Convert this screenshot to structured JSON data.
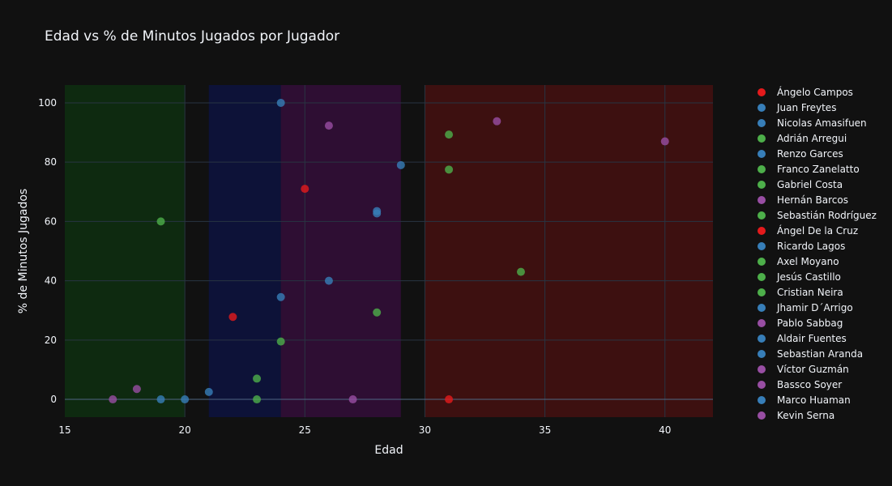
{
  "chart_data": {
    "type": "scatter",
    "title": "Edad vs % de Minutos Jugados por Jugador",
    "xlabel": "Edad",
    "ylabel": "% de Minutos Jugados",
    "xlim": [
      15,
      42
    ],
    "ylim": [
      -6,
      106
    ],
    "xticks": [
      15,
      20,
      25,
      30,
      35,
      40
    ],
    "yticks": [
      0,
      20,
      40,
      60,
      80,
      100
    ],
    "grid": true,
    "legend_position": "right",
    "background": "#111111",
    "regions": [
      {
        "x0": 15,
        "x1": 20,
        "color": "#0e2a10"
      },
      {
        "x0": 21,
        "x1": 24,
        "color": "#0d1238"
      },
      {
        "x0": 24,
        "x1": 29,
        "color": "#2e0e33"
      },
      {
        "x0": 30,
        "x1": 42,
        "color": "#3d1010"
      }
    ],
    "series": [
      {
        "name": "Ángelo Campos",
        "color": "#e41a1c",
        "x": [
          31
        ],
        "y": [
          0
        ]
      },
      {
        "name": "Juan Freytes",
        "color": "#377eb8",
        "x": [
          29
        ],
        "y": [
          79
        ]
      },
      {
        "name": "Nicolas Amasifuen",
        "color": "#377eb8",
        "x": [
          20
        ],
        "y": [
          0
        ]
      },
      {
        "name": "Adrián Arregui",
        "color": "#4daf4a",
        "x": [
          31
        ],
        "y": [
          77.5
        ]
      },
      {
        "name": "Renzo Garces",
        "color": "#377eb8",
        "x": [
          28
        ],
        "y": [
          63.5
        ]
      },
      {
        "name": "Franco Zanelatto",
        "color": "#4daf4a",
        "x": [
          24
        ],
        "y": [
          19.5
        ]
      },
      {
        "name": "Gabriel Costa",
        "color": "#4daf4a",
        "x": [
          31
        ],
        "y": [
          89.3
        ]
      },
      {
        "name": "Hernán Barcos",
        "color": "#984ea3",
        "x": [
          40
        ],
        "y": [
          87
        ]
      },
      {
        "name": "Sebastián Rodríguez",
        "color": "#4daf4a",
        "x": [
          34
        ],
        "y": [
          43
        ]
      },
      {
        "name": "Ángel De la Cruz",
        "color": "#e41a1c",
        "x": [
          22
        ],
        "y": [
          27.8
        ]
      },
      {
        "name": "Ricardo Lagos",
        "color": "#377eb8",
        "x": [
          24
        ],
        "y": [
          34.5
        ]
      },
      {
        "name": "Axel Moyano",
        "color": "#4daf4a",
        "x": [
          28
        ],
        "y": [
          29.3
        ]
      },
      {
        "name": "Jesús Castillo",
        "color": "#4daf4a",
        "x": [
          19
        ],
        "y": [
          60
        ]
      },
      {
        "name": "Cristian Neira",
        "color": "#4daf4a",
        "x": [
          23
        ],
        "y": [
          7
        ]
      },
      {
        "name": "Jhamir D´Arrigo",
        "color": "#377eb8",
        "x": [
          21
        ],
        "y": [
          2.5
        ]
      },
      {
        "name": "Pablo Sabbag",
        "color": "#984ea3",
        "x": [
          26
        ],
        "y": [
          92.3
        ]
      },
      {
        "name": "Aldair Fuentes",
        "color": "#377eb8",
        "x": [
          19
        ],
        "y": [
          0
        ]
      },
      {
        "name": "Sebastian Aranda",
        "color": "#377eb8",
        "x": [
          28
        ],
        "y": [
          62.7
        ]
      },
      {
        "name": "Víctor Guzmán",
        "color": "#984ea3",
        "x": [
          33
        ],
        "y": [
          93.8
        ]
      },
      {
        "name": "Bassco Soyer",
        "color": "#984ea3",
        "x": [
          27
        ],
        "y": [
          0
        ]
      },
      {
        "name": "Marco Huaman",
        "color": "#377eb8",
        "x": [
          26
        ],
        "y": [
          40
        ]
      },
      {
        "name": "Kevin Serna",
        "color": "#984ea3",
        "x": [
          17
        ],
        "y": [
          0
        ]
      }
    ],
    "extra_points": [
      {
        "color": "#e41a1c",
        "x": 25,
        "y": 71
      },
      {
        "color": "#377eb8",
        "x": 24,
        "y": 100
      },
      {
        "color": "#4daf4a",
        "x": 23,
        "y": 0
      },
      {
        "color": "#984ea3",
        "x": 18,
        "y": 3.5
      }
    ]
  }
}
